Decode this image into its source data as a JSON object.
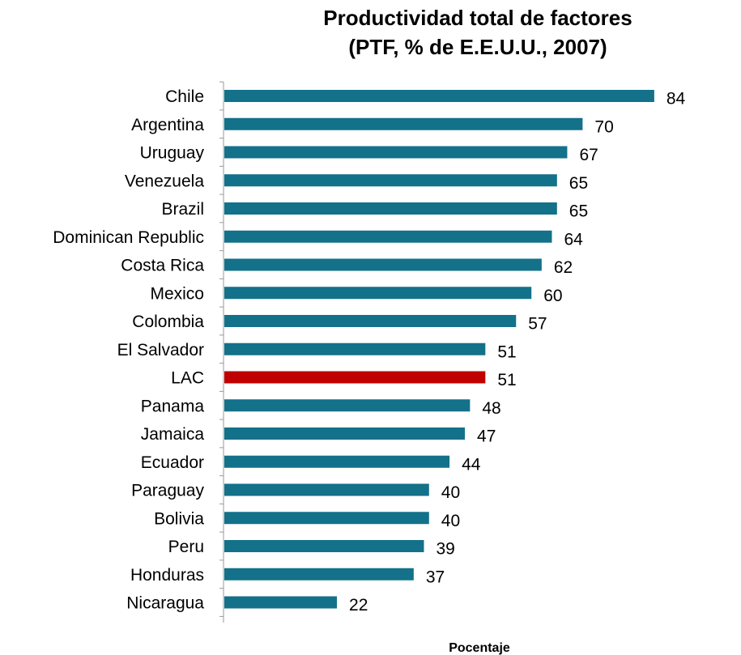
{
  "chart_data": {
    "type": "bar",
    "orientation": "horizontal",
    "title_line1": "Productividad total de factores",
    "title_line2": "(PTF, % de E.E.U.U., 2007)",
    "xlabel": "Pocentaje",
    "ylabel": "",
    "xlim": [
      0,
      100
    ],
    "grid": false,
    "categories": [
      "Chile",
      "Argentina",
      "Uruguay",
      "Venezuela",
      "Brazil",
      "Dominican Republic",
      "Costa Rica",
      "Mexico",
      "Colombia",
      "El Salvador",
      "LAC",
      "Panama",
      "Jamaica",
      "Ecuador",
      "Paraguay",
      "Bolivia",
      "Peru",
      "Honduras",
      "Nicaragua"
    ],
    "values": [
      84,
      70,
      67,
      65,
      65,
      64,
      62,
      60,
      57,
      51,
      51,
      48,
      47,
      44,
      40,
      40,
      39,
      37,
      22
    ],
    "value_labels": [
      "84",
      "70",
      "67",
      "65",
      "65",
      "64",
      "62",
      "60",
      "57",
      "51",
      "51",
      "48",
      "47",
      "44",
      "40",
      "40",
      "39",
      "37",
      "22"
    ],
    "bar_color": "#13718a",
    "highlight_category": "LAC",
    "highlight_color": "#c00000"
  }
}
